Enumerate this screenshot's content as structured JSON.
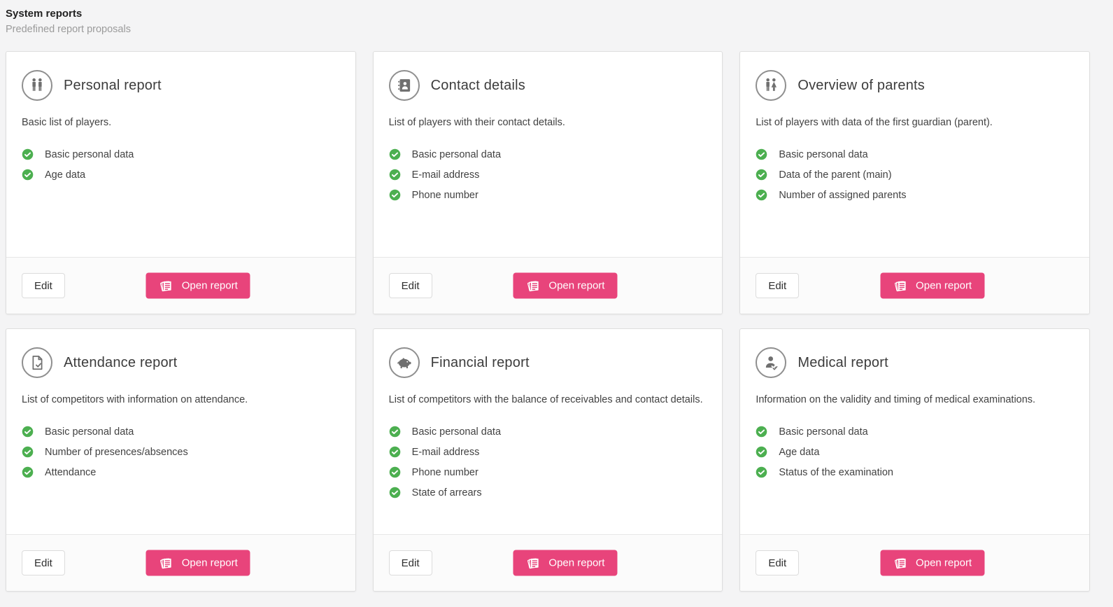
{
  "page": {
    "title": "System reports",
    "subtitle": "Predefined report proposals"
  },
  "actions": {
    "edit_label": "Edit",
    "open_label": "Open report",
    "open_icon": "report-pages-icon"
  },
  "colors": {
    "accent_pink": "#e8447b",
    "check_green": "#4caf50"
  },
  "cards": [
    {
      "id": "personal-report",
      "icon": "two-men-icon",
      "title": "Personal report",
      "description": "Basic list of players.",
      "features": [
        "Basic personal data",
        "Age data"
      ]
    },
    {
      "id": "contact-details",
      "icon": "address-book-icon",
      "title": "Contact details",
      "description": "List of players with their contact details.",
      "features": [
        "Basic personal data",
        "E-mail address",
        "Phone number"
      ]
    },
    {
      "id": "overview-of-parents",
      "icon": "man-woman-icon",
      "title": "Overview of parents",
      "description": "List of players with data of the first guardian (parent).",
      "features": [
        "Basic personal data",
        "Data of the parent (main)",
        "Number of assigned parents"
      ]
    },
    {
      "id": "attendance-report",
      "icon": "document-check-icon",
      "title": "Attendance report",
      "description": "List of competitors with information on attendance.",
      "features": [
        "Basic personal data",
        "Number of presences/absences",
        "Attendance"
      ]
    },
    {
      "id": "financial-report",
      "icon": "piggy-bank-icon",
      "title": "Financial report",
      "description": "List of competitors with the balance of receivables and contact details.",
      "features": [
        "Basic personal data",
        "E-mail address",
        "Phone number",
        "State of arrears"
      ]
    },
    {
      "id": "medical-report",
      "icon": "person-check-icon",
      "title": "Medical report",
      "description": "Information on the validity and timing of medical examinations.",
      "features": [
        "Basic personal data",
        "Age data",
        "Status of the examination"
      ]
    }
  ]
}
